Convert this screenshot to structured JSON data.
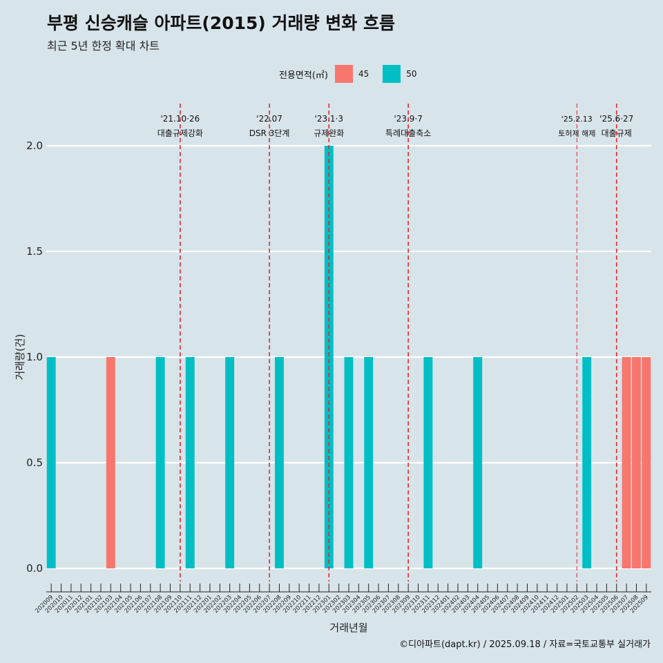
{
  "title": "부평 신승캐슬 아파트(2015) 거래량 변화 흐름",
  "subtitle": "최근 5년 한정 확대 차트",
  "caption": "©디아파트(dapt.kr) / 2025.09.18 / 자료=국토교통부 실거래가",
  "legend": {
    "title": "전용면적(㎡)",
    "items": [
      {
        "label": "45",
        "color": "#f8766d"
      },
      {
        "label": "50",
        "color": "#00bfc4"
      }
    ]
  },
  "chart_data": {
    "type": "bar",
    "xlabel": "거래년월",
    "ylabel": "거래량(건)",
    "ylim": [
      0,
      2
    ],
    "yticks": [
      "0.0",
      "0.5",
      "1.0",
      "1.5",
      "2.0"
    ],
    "grid": true,
    "legend_position": "top",
    "categories": [
      "202009",
      "202010",
      "202011",
      "202012",
      "202101",
      "202102",
      "202103",
      "202104",
      "202105",
      "202106",
      "202107",
      "202108",
      "202109",
      "202110",
      "202111",
      "202112",
      "202201",
      "202202",
      "202203",
      "202204",
      "202205",
      "202206",
      "202207",
      "202208",
      "202209",
      "202210",
      "202211",
      "202212",
      "202301",
      "202302",
      "202303",
      "202304",
      "202305",
      "202306",
      "202307",
      "202308",
      "202309",
      "202310",
      "202311",
      "202312",
      "202401",
      "202402",
      "202403",
      "202404",
      "202405",
      "202406",
      "202407",
      "202408",
      "202409",
      "202410",
      "202411",
      "202412",
      "202501",
      "202502",
      "202503",
      "202504",
      "202505",
      "202506",
      "202507",
      "202508",
      "202509"
    ],
    "series": [
      {
        "name": "45",
        "color": "#f8766d",
        "values": [
          0,
          0,
          0,
          0,
          0,
          0,
          1,
          0,
          0,
          0,
          0,
          0,
          0,
          0,
          0,
          0,
          0,
          0,
          0,
          0,
          0,
          0,
          0,
          0,
          0,
          0,
          0,
          0,
          0,
          0,
          0,
          0,
          0,
          0,
          0,
          0,
          0,
          0,
          0,
          0,
          0,
          0,
          0,
          0,
          0,
          0,
          0,
          0,
          0,
          0,
          0,
          0,
          0,
          0,
          0,
          0,
          0,
          0,
          1,
          1,
          1
        ]
      },
      {
        "name": "50",
        "color": "#00bfc4",
        "values": [
          1,
          0,
          0,
          0,
          0,
          0,
          0,
          0,
          0,
          0,
          0,
          1,
          0,
          0,
          1,
          0,
          0,
          0,
          1,
          0,
          0,
          0,
          0,
          1,
          0,
          0,
          0,
          0,
          2,
          0,
          1,
          0,
          1,
          0,
          0,
          0,
          0,
          0,
          1,
          0,
          0,
          0,
          0,
          1,
          0,
          0,
          0,
          0,
          0,
          0,
          0,
          0,
          0,
          0,
          1,
          0,
          0,
          0,
          0,
          0,
          0
        ]
      }
    ],
    "annotations": [
      {
        "x": 13.5,
        "date": "'21.10·26",
        "label": "대출규제강화"
      },
      {
        "x": 22.5,
        "date": "'22.07",
        "label": "DSR 3단계"
      },
      {
        "x": 28.5,
        "date": "'23.1·3",
        "label": "규제완화"
      },
      {
        "x": 36.5,
        "date": "'23.9·7",
        "label": "특례대출축소"
      },
      {
        "x": 53.5,
        "date": "'25.2.13",
        "label": "토허제 해제"
      },
      {
        "x": 57.5,
        "date": "'25.6·27",
        "label": "대출규제"
      }
    ]
  }
}
